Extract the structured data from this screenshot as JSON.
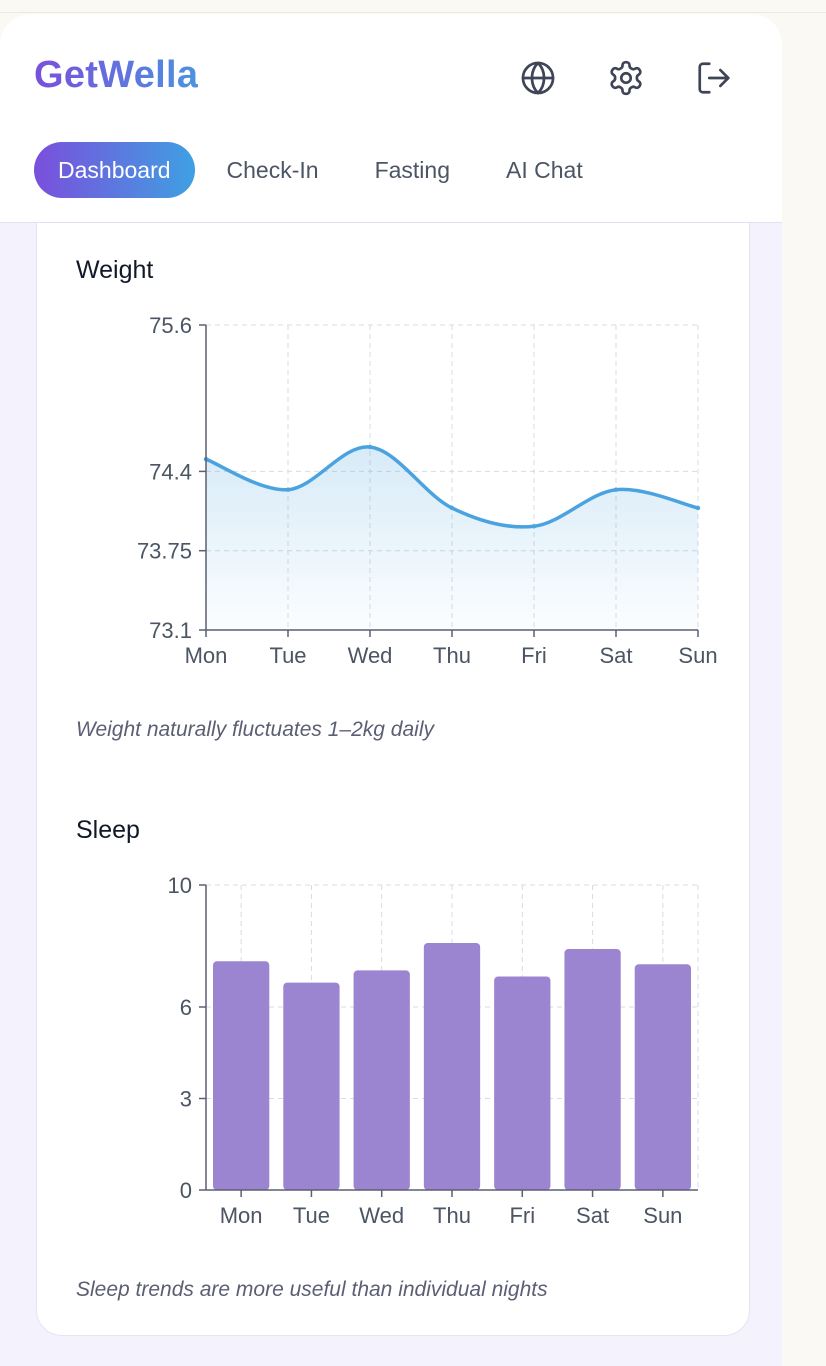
{
  "app": {
    "brand": "GetWella"
  },
  "header": {
    "icons": [
      "globe-icon",
      "gear-icon",
      "logout-icon"
    ]
  },
  "tabs": [
    {
      "label": "Dashboard",
      "active": true
    },
    {
      "label": "Check-In",
      "active": false
    },
    {
      "label": "Fasting",
      "active": false
    },
    {
      "label": "AI Chat",
      "active": false
    }
  ],
  "colors": {
    "accent_start": "#7a4fdc",
    "accent_end": "#3fa0e2",
    "weight_line": "#4aa3df",
    "sleep_bar": "#9b85d0"
  },
  "weight": {
    "title": "Weight",
    "note": "Weight naturally fluctuates 1–2kg daily"
  },
  "sleep": {
    "title": "Sleep",
    "note": "Sleep trends are more useful than individual nights"
  },
  "chart_data": [
    {
      "type": "area",
      "title": "Weight",
      "categories": [
        "Mon",
        "Tue",
        "Wed",
        "Thu",
        "Fri",
        "Sat",
        "Sun"
      ],
      "values": [
        74.5,
        74.25,
        74.6,
        74.1,
        73.95,
        74.25,
        74.1
      ],
      "ylim": [
        73.1,
        75.6
      ],
      "yticks": [
        "73.1",
        "73.75",
        "74.4",
        "75.6"
      ],
      "grid": true
    },
    {
      "type": "bar",
      "title": "Sleep",
      "categories": [
        "Mon",
        "Tue",
        "Wed",
        "Thu",
        "Fri",
        "Sat",
        "Sun"
      ],
      "values": [
        7.5,
        6.8,
        7.2,
        8.1,
        7.0,
        7.9,
        7.4
      ],
      "ylim": [
        0,
        10
      ],
      "yticks": [
        "0",
        "3",
        "6",
        "10"
      ],
      "grid": true
    }
  ]
}
